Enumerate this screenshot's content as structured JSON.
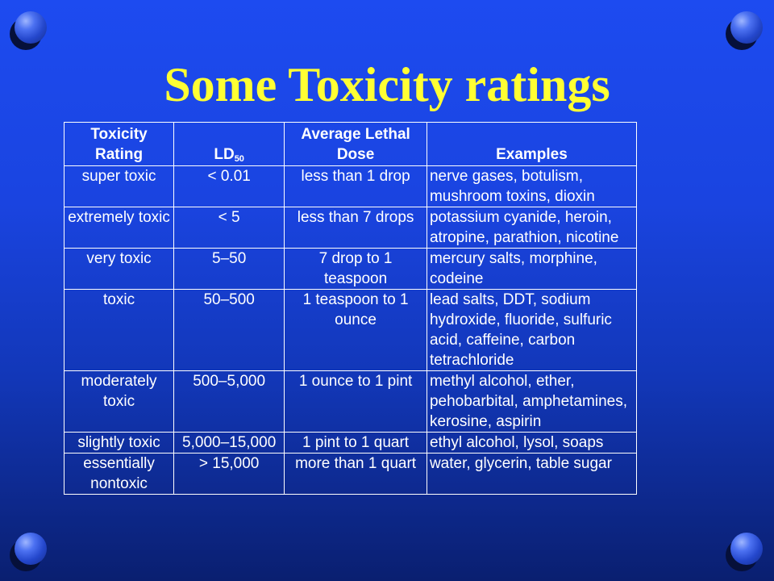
{
  "title": "Some Toxicity ratings",
  "table": {
    "headers": {
      "rating": "Toxicity Rating",
      "ld_main": "LD",
      "ld_sub": "50",
      "dose": "Average Lethal Dose",
      "examples": "Examples"
    },
    "rows": [
      {
        "rating": "super toxic",
        "ld50": "< 0.01",
        "dose": "less than 1 drop",
        "examples": "nerve gases, botulism, mushroom toxins, dioxin"
      },
      {
        "rating": "extremely toxic",
        "ld50": "< 5",
        "dose": "less than 7 drops",
        "examples": "potassium cyanide, heroin, atropine, parathion, nicotine"
      },
      {
        "rating": "very toxic",
        "ld50": "5–50",
        "dose": "7 drop to 1 teaspoon",
        "examples": "mercury salts, morphine, codeine"
      },
      {
        "rating": "toxic",
        "ld50": "50–500",
        "dose": "1 teaspoon to 1 ounce",
        "examples": "lead salts, DDT, sodium hydroxide, fluoride, sulfuric acid, caffeine, carbon tetrachloride"
      },
      {
        "rating": "moderately toxic",
        "ld50": "500–5,000",
        "dose": "1 ounce to 1 pint",
        "examples": "methyl alcohol, ether, pehobarbital, amphetamines, kerosine, aspirin"
      },
      {
        "rating": "slightly toxic",
        "ld50": "5,000–15,000",
        "dose": "1 pint to 1 quart",
        "examples": "ethyl alcohol, lysol, soaps"
      },
      {
        "rating": "essentially nontoxic",
        "ld50": "> 15,000",
        "dose": "more than 1 quart",
        "examples": "water, glycerin, table sugar"
      }
    ]
  },
  "colors": {
    "title": "#ffff33",
    "text": "#ffffff",
    "background_top": "#1d4bf0",
    "background_bottom": "#0a1f70"
  },
  "icons": [
    "sphere-bullet-icon"
  ]
}
